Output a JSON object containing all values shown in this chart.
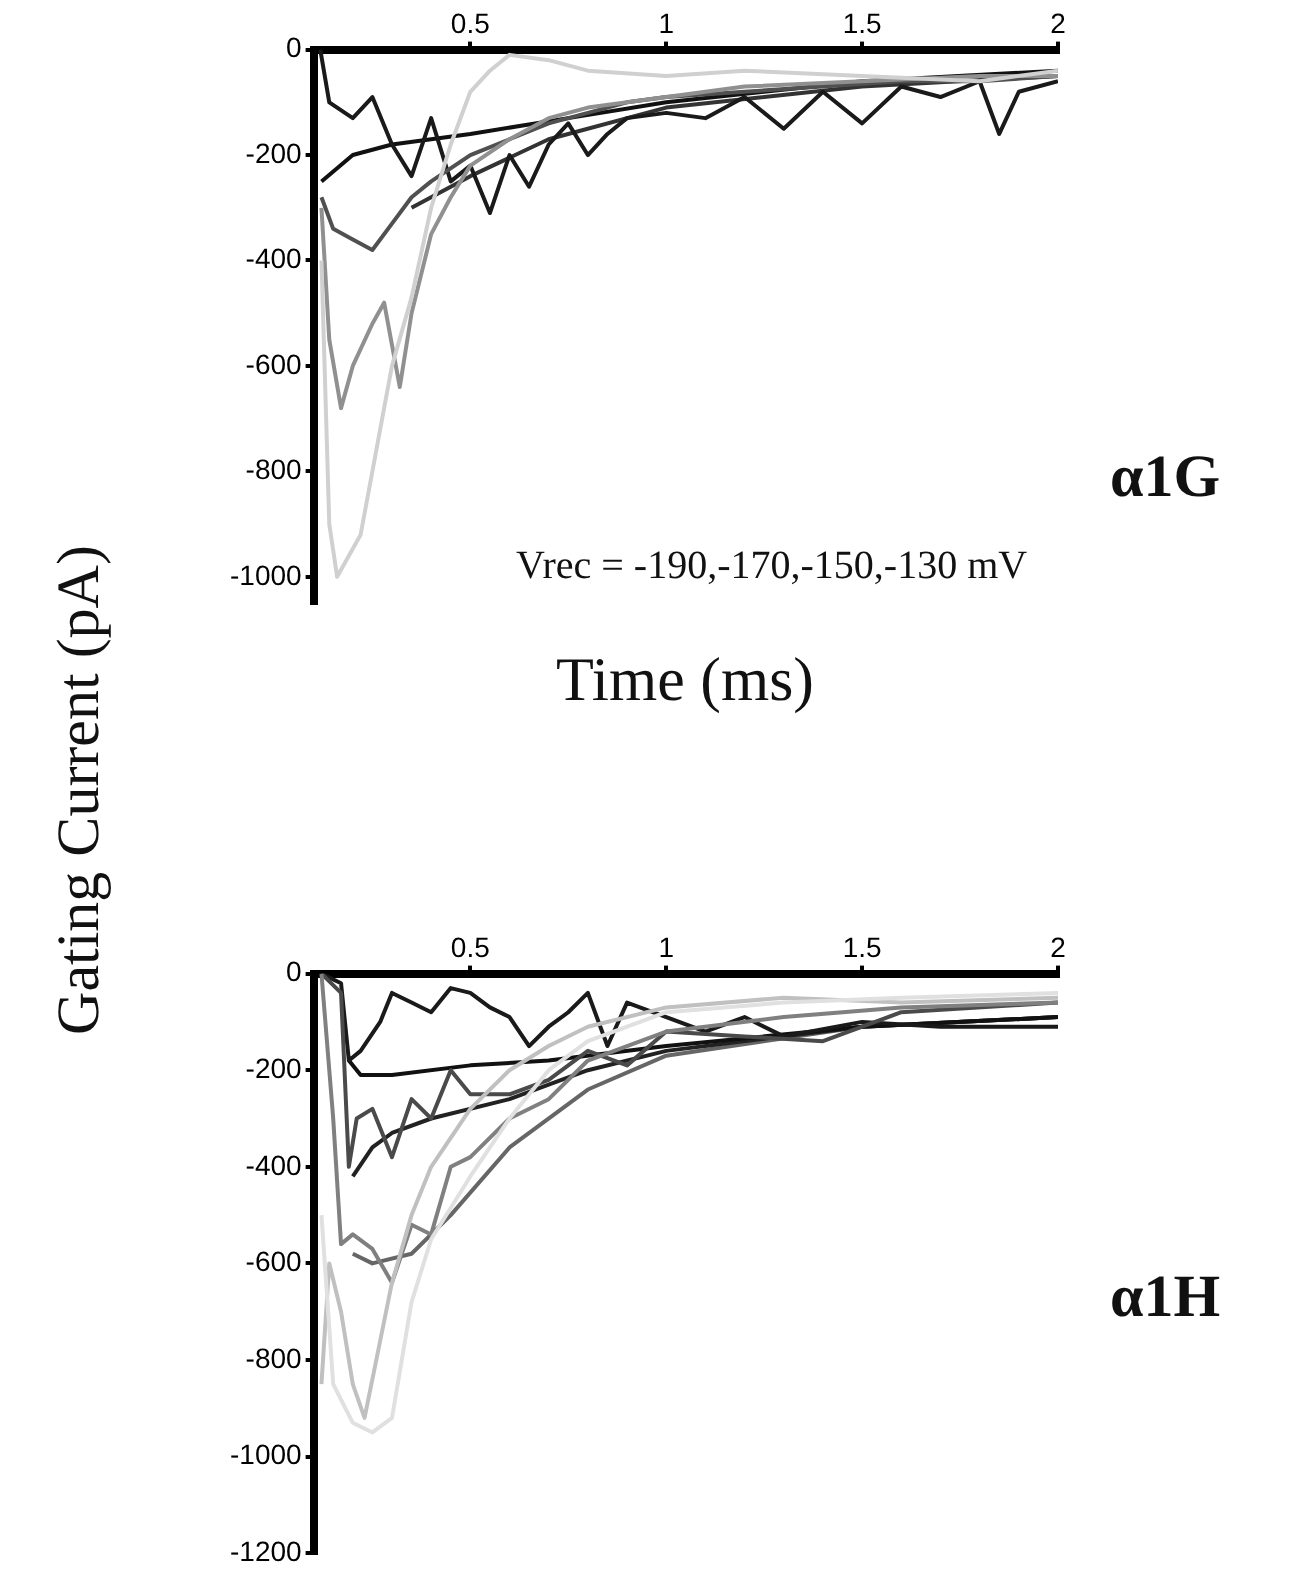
{
  "chart_data": [
    {
      "type": "line",
      "xlabel": "Time (ms)",
      "ylabel": "Gating Current (pA)",
      "annotations": [
        "α1G",
        "Vrec = -190,-170,-150,-130 mV"
      ],
      "xlim": [
        0.1,
        2
      ],
      "xticks": [
        0.5,
        1,
        1.5,
        2
      ],
      "ylim": [
        -1050,
        0
      ],
      "yticks": [
        -1000,
        -800,
        -600,
        -400,
        -200,
        0
      ],
      "grid": false,
      "series": [
        {
          "color": "#d0d0d0",
          "x": [
            0.12,
            0.14,
            0.16,
            0.19,
            0.22,
            0.25,
            0.3,
            0.35,
            0.4,
            0.45,
            0.5,
            0.55,
            0.6,
            0.7,
            0.8,
            1,
            1.2,
            1.5,
            1.8,
            2
          ],
          "values": [
            -400,
            -900,
            -1000,
            -960,
            -920,
            -800,
            -600,
            -470,
            -300,
            -180,
            -80,
            -40,
            -10,
            -20,
            -40,
            -50,
            -40,
            -50,
            -60,
            -40
          ]
        },
        {
          "color": "#909090",
          "x": [
            0.12,
            0.14,
            0.17,
            0.2,
            0.25,
            0.28,
            0.3,
            0.32,
            0.35,
            0.4,
            0.45,
            0.5,
            0.6,
            0.7,
            0.8,
            1,
            1.2,
            1.5,
            1.8,
            2
          ],
          "values": [
            -300,
            -550,
            -680,
            -600,
            -520,
            -480,
            -560,
            -640,
            -500,
            -350,
            -280,
            -220,
            -170,
            -130,
            -110,
            -90,
            -70,
            -60,
            -50,
            -50
          ]
        },
        {
          "color": "#505050",
          "x": [
            0.12,
            0.15,
            0.2,
            0.25,
            0.3,
            0.35,
            0.4,
            0.5,
            0.6,
            0.7,
            0.8,
            0.9,
            1,
            1.2,
            1.4,
            1.6,
            1.8,
            2
          ],
          "values": [
            -280,
            -340,
            -360,
            -380,
            -330,
            -280,
            -250,
            -200,
            -170,
            -140,
            -120,
            -100,
            -90,
            -80,
            -70,
            -60,
            -60,
            -50
          ]
        },
        {
          "color": "#1a1a1a",
          "x": [
            0.117,
            0.14,
            0.2,
            0.25,
            0.3,
            0.35,
            0.4,
            0.45,
            0.5,
            0.55,
            0.6,
            0.65,
            0.7,
            0.75,
            0.8,
            0.85,
            0.9,
            1,
            1.1,
            1.2,
            1.3,
            1.4,
            1.5,
            1.6,
            1.7,
            1.8,
            1.85,
            1.9,
            2
          ],
          "values": [
            0,
            -100,
            -130,
            -90,
            -180,
            -240,
            -130,
            -250,
            -220,
            -310,
            -200,
            -260,
            -180,
            -140,
            -200,
            -160,
            -130,
            -120,
            -130,
            -90,
            -150,
            -80,
            -140,
            -70,
            -90,
            -60,
            -160,
            -80,
            -60
          ]
        },
        {
          "color": "#111111",
          "x": [
            0.12,
            0.2,
            0.3,
            0.5,
            0.75,
            1,
            1.5,
            2
          ],
          "values": [
            -250,
            -200,
            -180,
            -160,
            -130,
            -100,
            -60,
            -40
          ]
        },
        {
          "color": "#333333",
          "x": [
            0.35,
            0.5,
            0.7,
            1,
            1.5,
            2
          ],
          "values": [
            -300,
            -240,
            -170,
            -110,
            -70,
            -50
          ]
        }
      ]
    },
    {
      "type": "line",
      "annotations": [
        "α1H"
      ],
      "xlim": [
        0.1,
        2
      ],
      "xticks": [
        0.5,
        1,
        1.5,
        2
      ],
      "ylim": [
        -1200,
        0
      ],
      "yticks": [
        -1200,
        -1000,
        -800,
        -600,
        -400,
        -200,
        0
      ],
      "grid": false,
      "series": [
        {
          "color": "#e0e0e0",
          "x": [
            0.12,
            0.15,
            0.2,
            0.25,
            0.3,
            0.35,
            0.4,
            0.5,
            0.6,
            0.7,
            0.8,
            1,
            1.3,
            1.6,
            2
          ],
          "values": [
            -500,
            -850,
            -930,
            -950,
            -920,
            -680,
            -550,
            -420,
            -300,
            -200,
            -140,
            -80,
            -60,
            -50,
            -40
          ]
        },
        {
          "color": "#c0c0c0",
          "x": [
            0.12,
            0.14,
            0.17,
            0.2,
            0.23,
            0.27,
            0.3,
            0.35,
            0.4,
            0.5,
            0.6,
            0.7,
            0.8,
            1,
            1.3,
            1.6,
            2
          ],
          "values": [
            -850,
            -600,
            -700,
            -850,
            -920,
            -760,
            -640,
            -500,
            -400,
            -280,
            -200,
            -150,
            -110,
            -70,
            -50,
            -60,
            -50
          ]
        },
        {
          "color": "#808080",
          "x": [
            0.12,
            0.15,
            0.17,
            0.2,
            0.25,
            0.3,
            0.35,
            0.4,
            0.45,
            0.5,
            0.6,
            0.7,
            0.8,
            1,
            1.3,
            1.6,
            2
          ],
          "values": [
            0,
            -300,
            -560,
            -540,
            -570,
            -640,
            -520,
            -540,
            -400,
            -380,
            -300,
            -260,
            -180,
            -120,
            -90,
            -70,
            -60
          ]
        },
        {
          "color": "#4a4a4a",
          "x": [
            0.12,
            0.17,
            0.19,
            0.21,
            0.25,
            0.3,
            0.35,
            0.4,
            0.45,
            0.5,
            0.6,
            0.7,
            0.8,
            0.9,
            1,
            1.2,
            1.4,
            1.6,
            2
          ],
          "values": [
            0,
            -40,
            -400,
            -300,
            -280,
            -380,
            -260,
            -300,
            -200,
            -250,
            -250,
            -220,
            -160,
            -190,
            -120,
            -130,
            -140,
            -80,
            -60
          ]
        },
        {
          "color": "#1a1a1a",
          "x": [
            0.12,
            0.17,
            0.19,
            0.22,
            0.27,
            0.3,
            0.35,
            0.4,
            0.45,
            0.5,
            0.55,
            0.6,
            0.65,
            0.7,
            0.75,
            0.8,
            0.85,
            0.9,
            1,
            1.1,
            1.2,
            1.3,
            1.5,
            1.7,
            2
          ],
          "values": [
            0,
            -20,
            -180,
            -160,
            -100,
            -40,
            -60,
            -80,
            -30,
            -40,
            -70,
            -90,
            -150,
            -110,
            -80,
            -40,
            -150,
            -60,
            -90,
            -120,
            -90,
            -130,
            -100,
            -110,
            -110
          ]
        },
        {
          "color": "#111111",
          "x": [
            0.19,
            0.22,
            0.3,
            0.5,
            0.7,
            1,
            1.5,
            2
          ],
          "values": [
            -180,
            -210,
            -210,
            -190,
            -180,
            -150,
            -110,
            -90
          ]
        },
        {
          "color": "#222222",
          "x": [
            0.2,
            0.25,
            0.3,
            0.4,
            0.6,
            0.8,
            1,
            1.5,
            2
          ],
          "values": [
            -420,
            -360,
            -330,
            -300,
            -260,
            -200,
            -160,
            -110,
            -90
          ]
        },
        {
          "color": "#666666",
          "x": [
            0.2,
            0.25,
            0.35,
            0.45,
            0.6,
            0.8,
            1,
            1.5,
            2
          ],
          "values": [
            -580,
            -600,
            -580,
            -500,
            -360,
            -240,
            -170,
            -110,
            -90
          ]
        }
      ]
    }
  ]
}
